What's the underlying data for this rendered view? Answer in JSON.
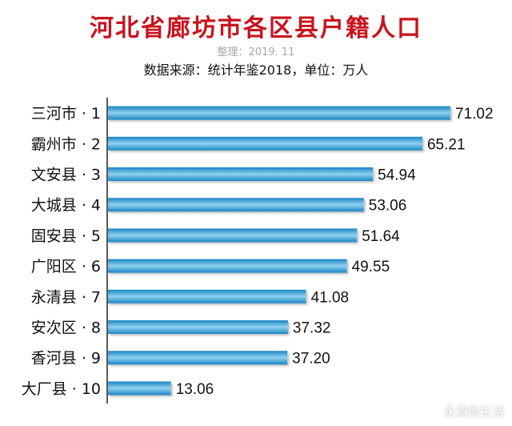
{
  "chart_data": {
    "type": "bar",
    "orientation": "horizontal",
    "title": "河北省廊坊市各区县户籍人口",
    "subtitle": "整理：2019. 11",
    "source": "数据来源：统计年鉴2018，单位：万人",
    "categories": [
      "三河市 · 1",
      "霸州市 · 2",
      "文安县 · 3",
      "大城县 · 4",
      "固安县 · 5",
      "广阳区 · 6",
      "永清县 · 7",
      "安次区 · 8",
      "香河县 · 9",
      "大厂县 · 10"
    ],
    "values": [
      71.02,
      65.21,
      54.94,
      53.06,
      51.64,
      49.55,
      41.08,
      37.32,
      37.2,
      13.06
    ],
    "value_labels": [
      "71.02",
      "65.21",
      "54.94",
      "53.06",
      "51.64",
      "49.55",
      "41.08",
      "37.32",
      "37.20",
      "13.06"
    ],
    "xlim": [
      0,
      75
    ],
    "grid": false,
    "colors": {
      "bar": "#2f9fd4",
      "bar_light": "#8fd2f0",
      "title": "#c8141e",
      "axis": "#222222"
    }
  },
  "watermark": {
    "text": "永清微生活",
    "icon": "wechat-icon"
  }
}
